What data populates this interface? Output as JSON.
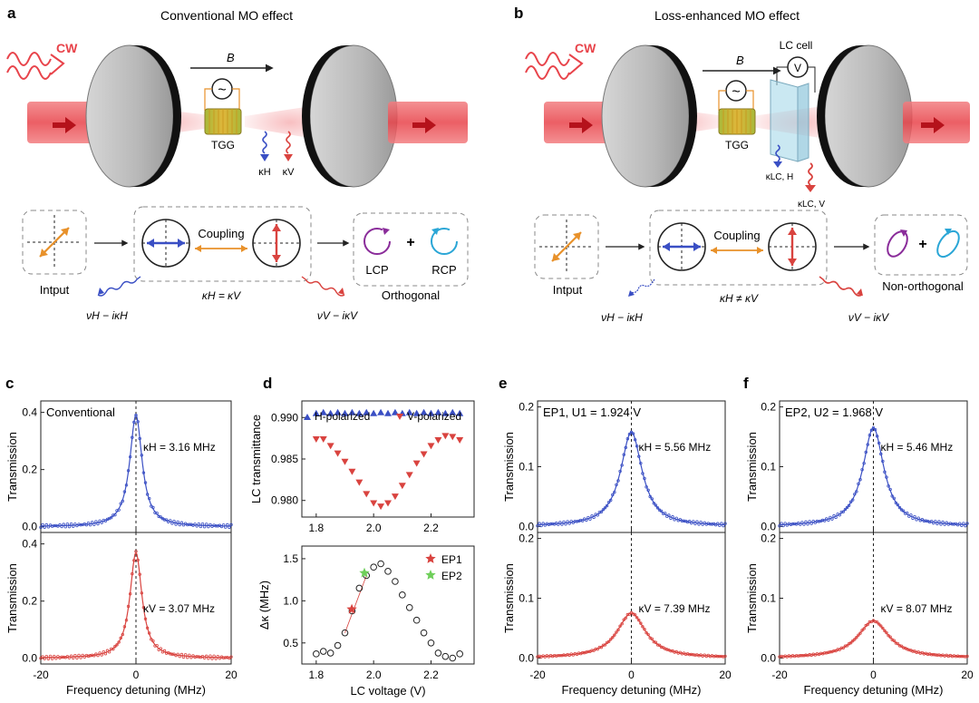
{
  "panels": {
    "a": {
      "letter": "a",
      "title": "Conventional MO effect",
      "cw_label": "CW",
      "b_label": "B",
      "ac_symbol": "~",
      "tgg_label": "TGG",
      "kappa_h_label": "κH",
      "kappa_v_label": "κV",
      "input_label": "Intput",
      "coupling_label": "Coupling",
      "kappa_relation": "κH = κV",
      "nu_h_label": "νH − iκH",
      "nu_v_label": "νV − iκV",
      "lcp_label": "LCP",
      "rcp_label": "RCP",
      "plus": "+",
      "output_label": "Orthogonal"
    },
    "b": {
      "letter": "b",
      "title": "Loss-enhanced MO effect",
      "cw_label": "CW",
      "b_label": "B",
      "ac_symbol": "~",
      "tgg_label": "TGG",
      "lc_cell_label": "LC cell",
      "voltmeter_label": "V",
      "kappa_lch_label": "κLC, H",
      "kappa_lcv_label": "κLC, V",
      "input_label": "Intput",
      "coupling_label": "Coupling",
      "kappa_relation": "κH ≠ κV",
      "nu_h_label": "νH − iκH",
      "nu_v_label": "νV − iκV",
      "plus": "+",
      "output_label": "Non-orthogonal"
    }
  },
  "colors": {
    "h_blue": "#3a4fc4",
    "v_red": "#d9433f",
    "orange": "#e8912a",
    "purple": "#8a2c9a",
    "cyan": "#2aa6d6",
    "beam": "#e8434a",
    "ep2_green": "#6fcf5a"
  },
  "chart_data": [
    {
      "id": "c",
      "letter": "c",
      "type": "line",
      "annotation": "Conventional",
      "xlabel": "Frequency detuning (MHz)",
      "xlim": [
        -20,
        20
      ],
      "xticks": [
        "-20",
        "0",
        "20"
      ],
      "subplots": [
        {
          "ylabel": "Transmission",
          "ylim": [
            -0.02,
            0.44
          ],
          "yticks": [
            "0.0",
            "0.2",
            "0.4"
          ],
          "peak": 0.39,
          "width": 3.16,
          "kappa_label": "κH = 3.16 MHz",
          "color": "#3a4fc4"
        },
        {
          "ylabel": "Transmission",
          "ylim": [
            -0.02,
            0.44
          ],
          "yticks": [
            "0.0",
            "0.2",
            "0.4"
          ],
          "peak": 0.37,
          "width": 3.07,
          "kappa_label": "κV = 3.07 MHz",
          "color": "#d9433f"
        }
      ]
    },
    {
      "id": "d-top",
      "letter": "d",
      "type": "scatter",
      "ylabel": "LC transmittance",
      "xlim": [
        1.75,
        2.35
      ],
      "ylim": [
        0.978,
        0.992
      ],
      "xticks": [
        "1.8",
        "2.0",
        "2.2"
      ],
      "yticks": [
        "0.980",
        "0.985",
        "0.990"
      ],
      "series": [
        {
          "name": "H-polarized",
          "x": [
            1.8,
            1.825,
            1.85,
            1.875,
            1.9,
            1.925,
            1.95,
            1.975,
            2.0,
            2.025,
            2.05,
            2.075,
            2.1,
            2.125,
            2.15,
            2.175,
            2.2,
            2.225,
            2.25,
            2.275,
            2.3
          ],
          "values": [
            0.9905,
            0.9906,
            0.9905,
            0.9906,
            0.9905,
            0.9906,
            0.9905,
            0.9906,
            0.9905,
            0.9906,
            0.9905,
            0.9906,
            0.9905,
            0.9906,
            0.9905,
            0.9906,
            0.9905,
            0.9906,
            0.9905,
            0.9906,
            0.9905
          ],
          "color": "#3a4fc4"
        },
        {
          "name": "V-polarized",
          "x": [
            1.8,
            1.825,
            1.85,
            1.875,
            1.9,
            1.925,
            1.95,
            1.975,
            2.0,
            2.025,
            2.05,
            2.075,
            2.1,
            2.125,
            2.15,
            2.175,
            2.2,
            2.225,
            2.25,
            2.275,
            2.3
          ],
          "values": [
            0.9874,
            0.9874,
            0.9866,
            0.9857,
            0.9847,
            0.9835,
            0.9822,
            0.9808,
            0.9797,
            0.9793,
            0.9797,
            0.9805,
            0.9818,
            0.9831,
            0.9845,
            0.9856,
            0.9866,
            0.9873,
            0.9878,
            0.9877,
            0.9873
          ],
          "color": "#d9433f"
        }
      ]
    },
    {
      "id": "d-bottom",
      "type": "scatter",
      "xlabel": "LC voltage (V)",
      "ylabel": "Δκ (MHz)",
      "xlim": [
        1.75,
        2.35
      ],
      "ylim": [
        0.25,
        1.65
      ],
      "xticks": [
        "1.8",
        "2.0",
        "2.2"
      ],
      "yticks": [
        "0.5",
        "1.0",
        "1.5"
      ],
      "series": [
        {
          "name": "data",
          "x": [
            1.8,
            1.825,
            1.85,
            1.875,
            1.9,
            1.925,
            1.95,
            1.975,
            2.0,
            2.025,
            2.05,
            2.075,
            2.1,
            2.125,
            2.15,
            2.175,
            2.2,
            2.225,
            2.25,
            2.275,
            2.3
          ],
          "values": [
            0.37,
            0.4,
            0.38,
            0.47,
            0.62,
            0.88,
            1.15,
            1.3,
            1.4,
            1.44,
            1.35,
            1.23,
            1.07,
            0.92,
            0.77,
            0.62,
            0.5,
            0.38,
            0.34,
            0.32,
            0.37
          ]
        },
        {
          "name": "EP1",
          "x": [
            1.924
          ],
          "values": [
            0.9
          ],
          "color": "#d9433f"
        },
        {
          "name": "EP2",
          "x": [
            1.968
          ],
          "values": [
            1.33
          ],
          "color": "#6fcf5a"
        }
      ]
    },
    {
      "id": "e",
      "letter": "e",
      "type": "line",
      "annotation": "EP1, U1 = 1.924 V",
      "xlabel": "Frequency detuning (MHz)",
      "xlim": [
        -20,
        20
      ],
      "xticks": [
        "-20",
        "0",
        "20"
      ],
      "subplots": [
        {
          "ylabel": "Transmission",
          "ylim": [
            -0.01,
            0.21
          ],
          "yticks": [
            "0.0",
            "0.1",
            "0.2"
          ],
          "peak": 0.158,
          "width": 5.56,
          "kappa_label": "κH = 5.56 MHz",
          "color": "#3a4fc4"
        },
        {
          "ylabel": "Transmission",
          "ylim": [
            -0.01,
            0.21
          ],
          "yticks": [
            "0.0",
            "0.1",
            "0.2"
          ],
          "peak": 0.075,
          "width": 7.39,
          "kappa_label": "κV = 7.39 MHz",
          "color": "#d9433f"
        }
      ]
    },
    {
      "id": "f",
      "letter": "f",
      "type": "line",
      "annotation": "EP2, U2 = 1.968 V",
      "xlabel": "Frequency detuning (MHz)",
      "xlim": [
        -20,
        20
      ],
      "xticks": [
        "-20",
        "0",
        "20"
      ],
      "subplots": [
        {
          "ylabel": "Transmission",
          "ylim": [
            -0.01,
            0.21
          ],
          "yticks": [
            "0.0",
            "0.1",
            "0.2"
          ],
          "peak": 0.165,
          "width": 5.46,
          "kappa_label": "κH = 5.46 MHz",
          "color": "#3a4fc4"
        },
        {
          "ylabel": "Transmission",
          "ylim": [
            -0.01,
            0.21
          ],
          "yticks": [
            "0.0",
            "0.1",
            "0.2"
          ],
          "peak": 0.062,
          "width": 8.07,
          "kappa_label": "κV = 8.07 MHz",
          "color": "#d9433f"
        }
      ]
    }
  ]
}
